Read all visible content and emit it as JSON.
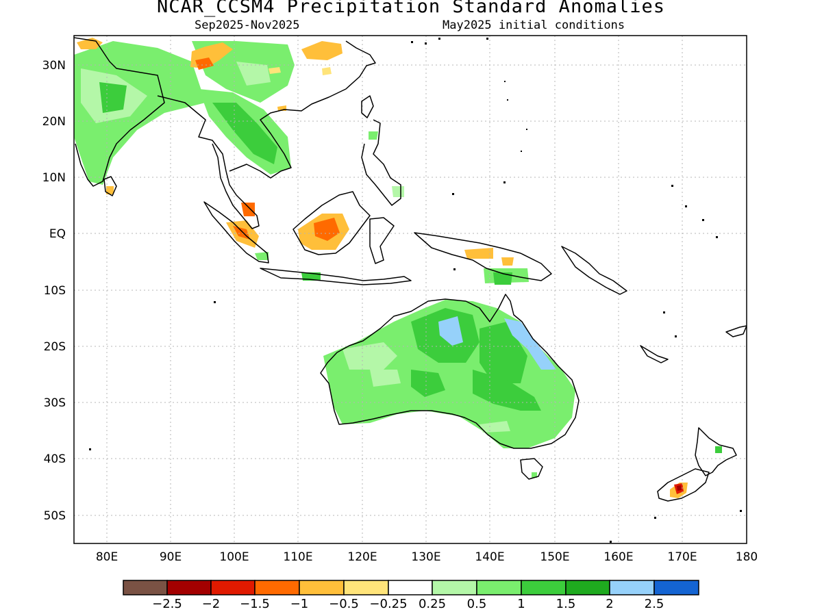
{
  "title": "NCAR_CCSM4 Precipitation Standard Anomalies",
  "subtitle_left": "Sep2025-Nov2025",
  "subtitle_right": "May2025 initial conditions",
  "lat_labels": [
    "30N",
    "20N",
    "10N",
    "EQ",
    "10S",
    "20S",
    "30S",
    "40S",
    "50S"
  ],
  "lon_labels": [
    "80E",
    "90E",
    "100E",
    "110E",
    "120E",
    "130E",
    "140E",
    "150E",
    "160E",
    "170E",
    "180"
  ],
  "colorbar": {
    "colors": [
      "#7a5244",
      "#a30000",
      "#e01a00",
      "#ff6a00",
      "#ffbf3a",
      "#ffe47a",
      "#ffffff",
      "#b4f7a8",
      "#7aee6e",
      "#3ccd3c",
      "#1faa1f",
      "#96d1fa",
      "#1464d2"
    ],
    "labels": [
      "-2.5",
      "-2",
      "-1.5",
      "-1",
      "-0.5",
      "-0.25",
      "0.25",
      "0.5",
      "1",
      "1.5",
      "2",
      "2.5"
    ]
  }
}
